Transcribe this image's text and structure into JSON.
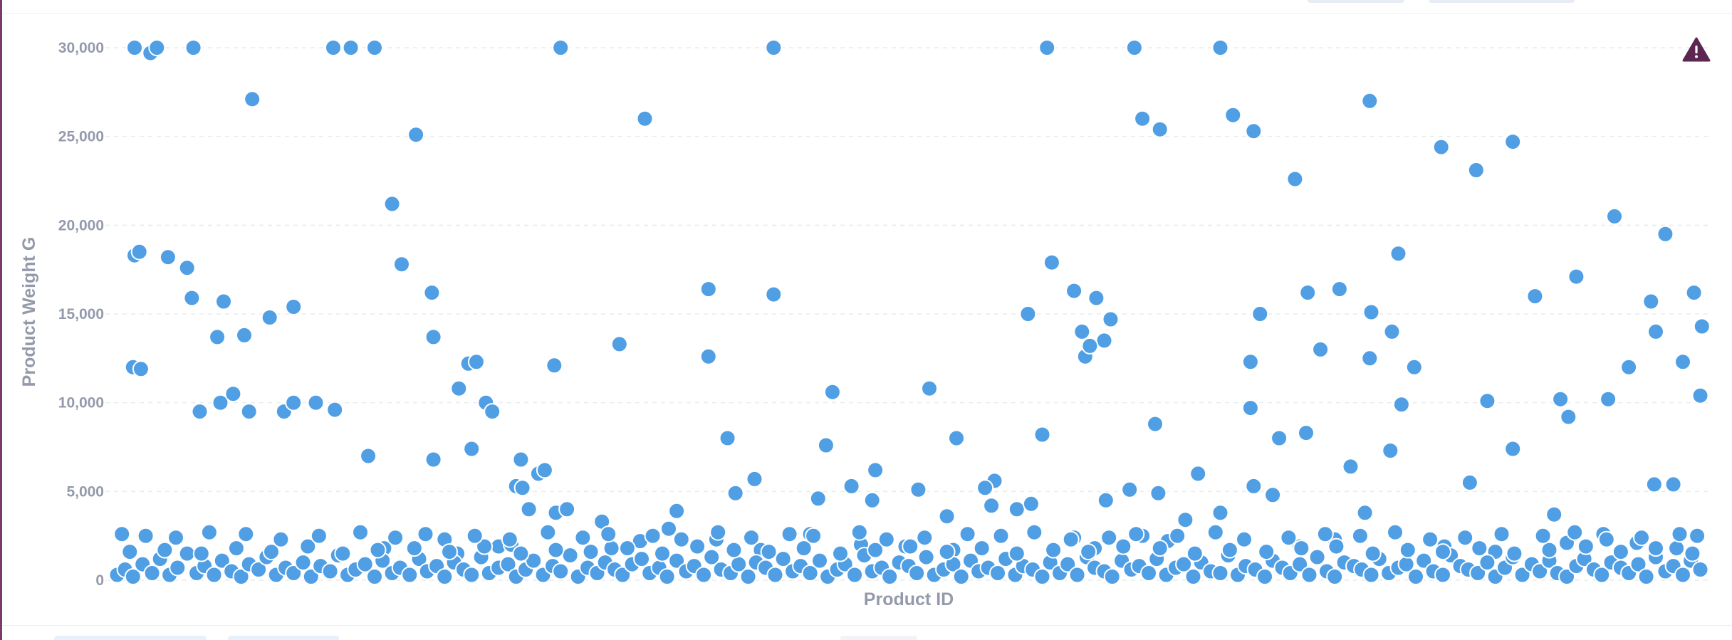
{
  "chart_data": {
    "type": "scatter",
    "xlabel": "Product ID",
    "ylabel": "Product Weight G",
    "ylim": [
      0,
      30000
    ],
    "y_ticks": [
      0,
      5000,
      10000,
      15000,
      20000,
      25000,
      30000
    ],
    "y_tick_labels": [
      "0",
      "5,000",
      "10,000",
      "15,000",
      "20,000",
      "25,000",
      "30,000"
    ],
    "x_tick_labels": [],
    "grid": true,
    "point_color": "#509ee3",
    "point_stroke": "#ffffff",
    "x_range": [
      0,
      100
    ],
    "series": [
      {
        "x": [
          1.3,
          2.3,
          2.7,
          5.0,
          8.7,
          13.8,
          14.9,
          16.4,
          19.0,
          28.1,
          33.4,
          41.5,
          58.7,
          64.2,
          69.6,
          74.3,
          79.0,
          83.5,
          88.0,
          97.0,
          1.3,
          1.6,
          3.4,
          4.6,
          4.9,
          6.9,
          9.8,
          11.3,
          18.1,
          20.0,
          20.1,
          37.4,
          41.5,
          1.2,
          1.7,
          6.5,
          8.2,
          22.3,
          22.8,
          27.7,
          31.8,
          37.4,
          5.4,
          6.7,
          7.5,
          8.5,
          10.7,
          11.3,
          12.7,
          13.9,
          16.0,
          20.1,
          21.7,
          25.6,
          17.5,
          22.5,
          23.4,
          23.8,
          59.0,
          60.4,
          60.9,
          61.8,
          62.3,
          61.1,
          61.4,
          62.7,
          64.7,
          65.8,
          70.4,
          71.7,
          72.1,
          71.5,
          75.1,
          77.1,
          79.1,
          80.8,
          81.8,
          85.7,
          89.4,
          92.0,
          95.3,
          94.4,
          97.6,
          99.9,
          99.4,
          98.7,
          99.8,
          96.7,
          94.0,
          91.5,
          91.0,
          81.0,
          80.4,
          45.2,
          51.3,
          57.5,
          65.5,
          71.5,
          75.9,
          79.0,
          86.4,
          25.3,
          25.7,
          26.1,
          26.7,
          27.1,
          27.8,
          28.5,
          30.7,
          34.9,
          35.4,
          40.3,
          38.6,
          39.1,
          44.3,
          46.4,
          47.7,
          50.6,
          52.4,
          55.4,
          44.8,
          47.9,
          55.2,
          53.0,
          54.8,
          56.8,
          57.7,
          58.4,
          62.4,
          63.9,
          68.2,
          69.6,
          71.7,
          72.9,
          73.3,
          75.0,
          77.8,
          78.7,
          80.3,
          85.3,
          88.0,
          90.6,
          96.9,
          98.1,
          65.7,
          67.4,
          17.0,
          20.8,
          21.6,
          24.2,
          25.0,
          31.3,
          33.1,
          37.9,
          39.0,
          40.7,
          43.8,
          47.0,
          49.8,
          52.8,
          60.4,
          61.7,
          64.7,
          66.3,
          74.6,
          76.8,
          83.7,
          86.9,
          91.4,
          93.7,
          95.8,
          98.3
        ],
        "y": [
          30000,
          29700,
          30000,
          30000,
          27100,
          30000,
          30000,
          30000,
          25100,
          30000,
          26000,
          30000,
          30000,
          30000,
          30000,
          22600,
          27000,
          24400,
          24700,
          14000,
          18300,
          18500,
          18200,
          17600,
          15900,
          15700,
          14800,
          15400,
          17800,
          16200,
          13700,
          16400,
          16100,
          12000,
          11900,
          13700,
          13800,
          12200,
          12300,
          12100,
          13300,
          12600,
          9500,
          10000,
          10500,
          9500,
          9500,
          10000,
          10000,
          9600,
          7000,
          6800,
          10800,
          6800,
          21200,
          7400,
          10000,
          9500,
          17900,
          16300,
          14000,
          15900,
          13500,
          12600,
          13200,
          14700,
          26000,
          25400,
          26200,
          25300,
          15000,
          12300,
          16200,
          16400,
          15100,
          18400,
          12000,
          23100,
          16000,
          17100,
          12000,
          20500,
          19500,
          14300,
          16200,
          12300,
          10400,
          15700,
          10200,
          9200,
          10200,
          9900,
          14000,
          10600,
          10800,
          15000,
          8800,
          9700,
          13000,
          12500,
          10100,
          5300,
          5200,
          4000,
          6000,
          6200,
          3800,
          4000,
          3300,
          2900,
          3900,
          5700,
          8000,
          4900,
          4600,
          5300,
          4500,
          5100,
          3600,
          5600,
          7600,
          6200,
          4200,
          8000,
          5200,
          4000,
          4300,
          8200,
          4500,
          5100,
          6000,
          3800,
          5300,
          4800,
          8000,
          8300,
          6400,
          3800,
          7300,
          5500,
          7400,
          3700,
          5400,
          5400,
          4900,
          3400,
          1800,
          2300,
          1500,
          1900,
          2000,
          1800,
          2200,
          2300,
          1700,
          1700,
          2600,
          2000,
          1900,
          1700,
          2400,
          1800,
          2500,
          2200,
          1900,
          2300,
          1900,
          1600,
          2100,
          2600,
          2100,
          1800
        ]
      },
      {
        "x": [
          0.2,
          0.7,
          1.2,
          1.8,
          2.4,
          2.9,
          3.5,
          4.0,
          4.6,
          5.2,
          5.7,
          6.3,
          6.8,
          7.4,
          8.0,
          8.5,
          9.1,
          9.6,
          10.2,
          10.8,
          11.3,
          11.9,
          12.4,
          13.0,
          13.6,
          14.1,
          14.7,
          15.2,
          15.8,
          16.4,
          16.9,
          17.5,
          18.0,
          18.6,
          19.2,
          19.7,
          20.3,
          20.8,
          21.4,
          22.0,
          22.5,
          23.1,
          23.6,
          24.2,
          24.8,
          25.3,
          25.9,
          26.4,
          27.0,
          27.6,
          28.1,
          28.7,
          29.2,
          29.8,
          30.4,
          30.9,
          31.5,
          32.0,
          32.6,
          33.2,
          33.7,
          34.3,
          34.8,
          35.4,
          36.0,
          36.5,
          37.1,
          37.6,
          38.2,
          38.8,
          39.3,
          39.9,
          40.4,
          41.0,
          41.6,
          42.1,
          42.7,
          43.2,
          43.8,
          44.4,
          44.9,
          45.5,
          46.0,
          46.6,
          47.2,
          47.7,
          48.3,
          48.8,
          49.4,
          50.0,
          50.5,
          51.1,
          51.6,
          52.2,
          52.8,
          53.3,
          53.9,
          54.4,
          55.0,
          55.6,
          56.1,
          56.7,
          57.2,
          57.8,
          58.4,
          58.9,
          59.5,
          60.0,
          60.6,
          61.2,
          61.7,
          62.3,
          62.8,
          63.4,
          64.0,
          64.5,
          65.1,
          65.6,
          66.2,
          66.8,
          67.3,
          67.9,
          68.4,
          69.0,
          69.6,
          70.1,
          70.7,
          71.2,
          71.8,
          72.4,
          72.9,
          73.5,
          74.0,
          74.6,
          75.2,
          75.7,
          76.3,
          76.8,
          77.4,
          78.0,
          78.5,
          79.1,
          79.6,
          80.2,
          80.8,
          81.3,
          81.9,
          82.4,
          83.0,
          83.6,
          84.1,
          84.7,
          85.2,
          85.8,
          86.4,
          86.9,
          87.5,
          88.0,
          88.6,
          89.2,
          89.7,
          90.3,
          90.8,
          91.4,
          92.0,
          92.5,
          93.1,
          93.6,
          94.2,
          94.8,
          95.3,
          95.9,
          96.4,
          97.0,
          97.6,
          98.1,
          98.7,
          99.2,
          99.8,
          1.0,
          3.2,
          5.5,
          7.7,
          9.9,
          12.2,
          14.4,
          16.6,
          18.9,
          21.1,
          23.3,
          25.6,
          27.8,
          30.0,
          32.3,
          34.5,
          36.7,
          39.0,
          41.2,
          43.4,
          45.7,
          47.9,
          50.1,
          52.4,
          54.6,
          56.8,
          59.1,
          61.3,
          63.5,
          65.8,
          68.0,
          70.2,
          72.5,
          74.7,
          76.9,
          79.2,
          81.4,
          83.6,
          85.9,
          88.1,
          90.3,
          92.6,
          94.8,
          97.0,
          99.3,
          0.5,
          2.0,
          3.9,
          6.0,
          8.3,
          10.5,
          12.9,
          15.5,
          17.7,
          19.6,
          22.7,
          24.9,
          27.3,
          29.5,
          31.1,
          33.9,
          35.7,
          38.0,
          40.1,
          42.5,
          44.0,
          46.9,
          48.6,
          51.0,
          53.7,
          55.8,
          57.9,
          60.2,
          62.6,
          64.3,
          66.9,
          69.3,
          71.1,
          73.9,
          76.2,
          78.4,
          80.6,
          82.8,
          85.0,
          87.3,
          89.9,
          91.9,
          93.9,
          96.1,
          98.5,
          99.6
        ],
        "y": [
          300,
          600,
          200,
          900,
          400,
          1200,
          300,
          700,
          1500,
          400,
          800,
          300,
          1100,
          500,
          200,
          900,
          600,
          1300,
          300,
          700,
          400,
          1000,
          200,
          800,
          500,
          1400,
          300,
          600,
          900,
          200,
          1100,
          400,
          700,
          300,
          1200,
          500,
          800,
          200,
          1000,
          600,
          300,
          1300,
          400,
          700,
          900,
          200,
          600,
          1100,
          300,
          800,
          500,
          1400,
          200,
          700,
          400,
          1000,
          600,
          300,
          900,
          1200,
          400,
          700,
          200,
          1100,
          500,
          800,
          300,
          1300,
          600,
          400,
          900,
          200,
          1000,
          700,
          300,
          1200,
          500,
          800,
          400,
          1100,
          200,
          600,
          900,
          300,
          1400,
          500,
          700,
          200,
          1000,
          800,
          400,
          1300,
          300,
          600,
          900,
          200,
          1100,
          500,
          700,
          400,
          1200,
          300,
          800,
          600,
          200,
          1000,
          400,
          900,
          300,
          1300,
          700,
          500,
          200,
          1100,
          600,
          800,
          400,
          1200,
          300,
          700,
          900,
          200,
          1000,
          500,
          400,
          1400,
          300,
          800,
          600,
          200,
          1100,
          700,
          400,
          900,
          300,
          1300,
          500,
          200,
          1000,
          800,
          600,
          300,
          1200,
          400,
          700,
          900,
          200,
          1100,
          500,
          300,
          1400,
          800,
          600,
          400,
          1000,
          200,
          700,
          1300,
          300,
          900,
          500,
          1100,
          400,
          200,
          800,
          1200,
          600,
          300,
          1000,
          700,
          400,
          900,
          200,
          1300,
          500,
          800,
          300,
          1100,
          600,
          1600,
          1700,
          1500,
          1800,
          1600,
          1900,
          1500,
          1700,
          1800,
          1600,
          1900,
          1500,
          1700,
          1600,
          1800,
          1500,
          1900,
          1700,
          1600,
          1800,
          1500,
          1700,
          1900,
          1600,
          1800,
          1500,
          1700,
          1600,
          1900,
          1800,
          1500,
          1700,
          1600,
          1800,
          1900,
          1500,
          1700,
          1600,
          1800,
          1500,
          1700,
          1900,
          1600,
          1800,
          1500,
          2600,
          2500,
          2400,
          2700,
          2600,
          2300,
          2500,
          2700,
          2400,
          2600,
          2500,
          2300,
          2700,
          2400,
          2600,
          2500,
          2300,
          2700,
          2400,
          2600,
          2500,
          2700,
          2300,
          2400,
          2600,
          2500,
          2700,
          2300,
          2400,
          2600,
          2500,
          2700,
          2300,
          2400,
          2600,
          2500,
          2700,
          2300,
          2400,
          2600,
          2500,
          2700,
          2300,
          2400,
          2600,
          2500
        ]
      }
    ]
  },
  "status": {
    "warning_icon": "warning-triangle-icon",
    "warning_color": "#5b2650"
  }
}
